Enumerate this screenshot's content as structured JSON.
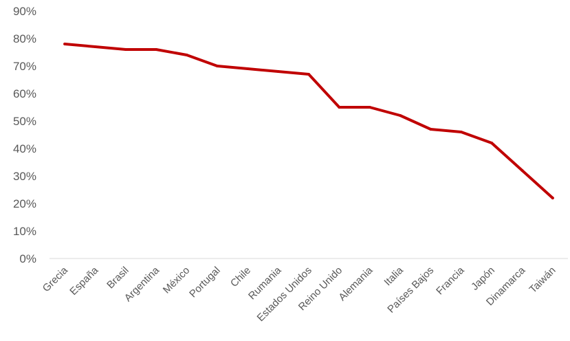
{
  "chart_data": {
    "type": "line",
    "title": "",
    "xlabel": "",
    "ylabel": "",
    "categories": [
      "Grecia",
      "España",
      "Brasil",
      "Argentina",
      "México",
      "Portugal",
      "Chile",
      "Rumania",
      "Estados Unidos",
      "Reino Unido",
      "Alemania",
      "Italia",
      "Países Bajos",
      "Francia",
      "Japón",
      "Dinamarca",
      "Taiwán"
    ],
    "values": [
      78,
      77,
      76,
      76,
      74,
      70,
      69,
      68,
      67,
      55,
      55,
      52,
      47,
      46,
      42,
      32,
      22
    ],
    "ylim": [
      0,
      90
    ],
    "yticks": [
      "0%",
      "10%",
      "20%",
      "30%",
      "40%",
      "50%",
      "60%",
      "70%",
      "80%",
      "90%"
    ],
    "grid": false,
    "legend": "none",
    "line_color": "#c00000"
  }
}
